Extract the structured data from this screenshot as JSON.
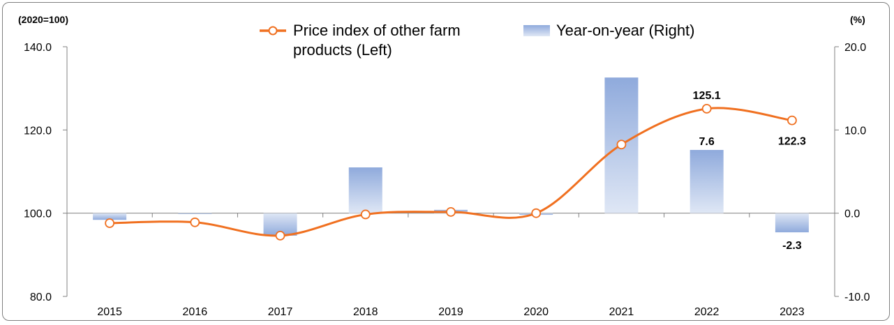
{
  "chart_data": {
    "type": "bar+line",
    "left_unit": "(2020=100)",
    "right_unit": "(%)",
    "categories": [
      "2015",
      "2016",
      "2017",
      "2018",
      "2019",
      "2020",
      "2021",
      "2022",
      "2023"
    ],
    "left_axis": {
      "ylim": [
        80,
        140
      ],
      "ticks": [
        "80.0",
        "100.0",
        "120.0",
        "140.0"
      ],
      "tick_values": [
        80,
        100,
        120,
        140
      ]
    },
    "right_axis": {
      "ylim": [
        -10,
        20
      ],
      "ticks": [
        "-10.0",
        "0.0",
        "10.0",
        "20.0"
      ],
      "tick_values": [
        -10,
        0,
        10,
        20
      ]
    },
    "series": [
      {
        "name": "Price index of other farm products (Left)",
        "legend_lines": [
          "Price index of other farm",
          "products (Left)"
        ],
        "kind": "line",
        "axis": "left",
        "color": "#f07020",
        "values": [
          97.6,
          97.8,
          94.6,
          99.7,
          100.3,
          100.0,
          116.5,
          125.1,
          122.3
        ]
      },
      {
        "name": "Year-on-year (Right)",
        "kind": "bar",
        "axis": "right",
        "color": "#8faadc",
        "values": [
          -0.8,
          -0.1,
          -2.7,
          5.5,
          0.4,
          -0.2,
          16.3,
          7.6,
          -2.3
        ]
      }
    ],
    "data_labels": [
      {
        "series": 0,
        "index": 7,
        "text": "125.1",
        "pos": "above"
      },
      {
        "series": 0,
        "index": 8,
        "text": "122.3",
        "pos": "below"
      },
      {
        "series": 1,
        "index": 7,
        "text": "7.6",
        "pos": "above"
      },
      {
        "series": 1,
        "index": 8,
        "text": "-2.3",
        "pos": "below"
      }
    ],
    "grid": false,
    "legend_position": "top-center"
  }
}
